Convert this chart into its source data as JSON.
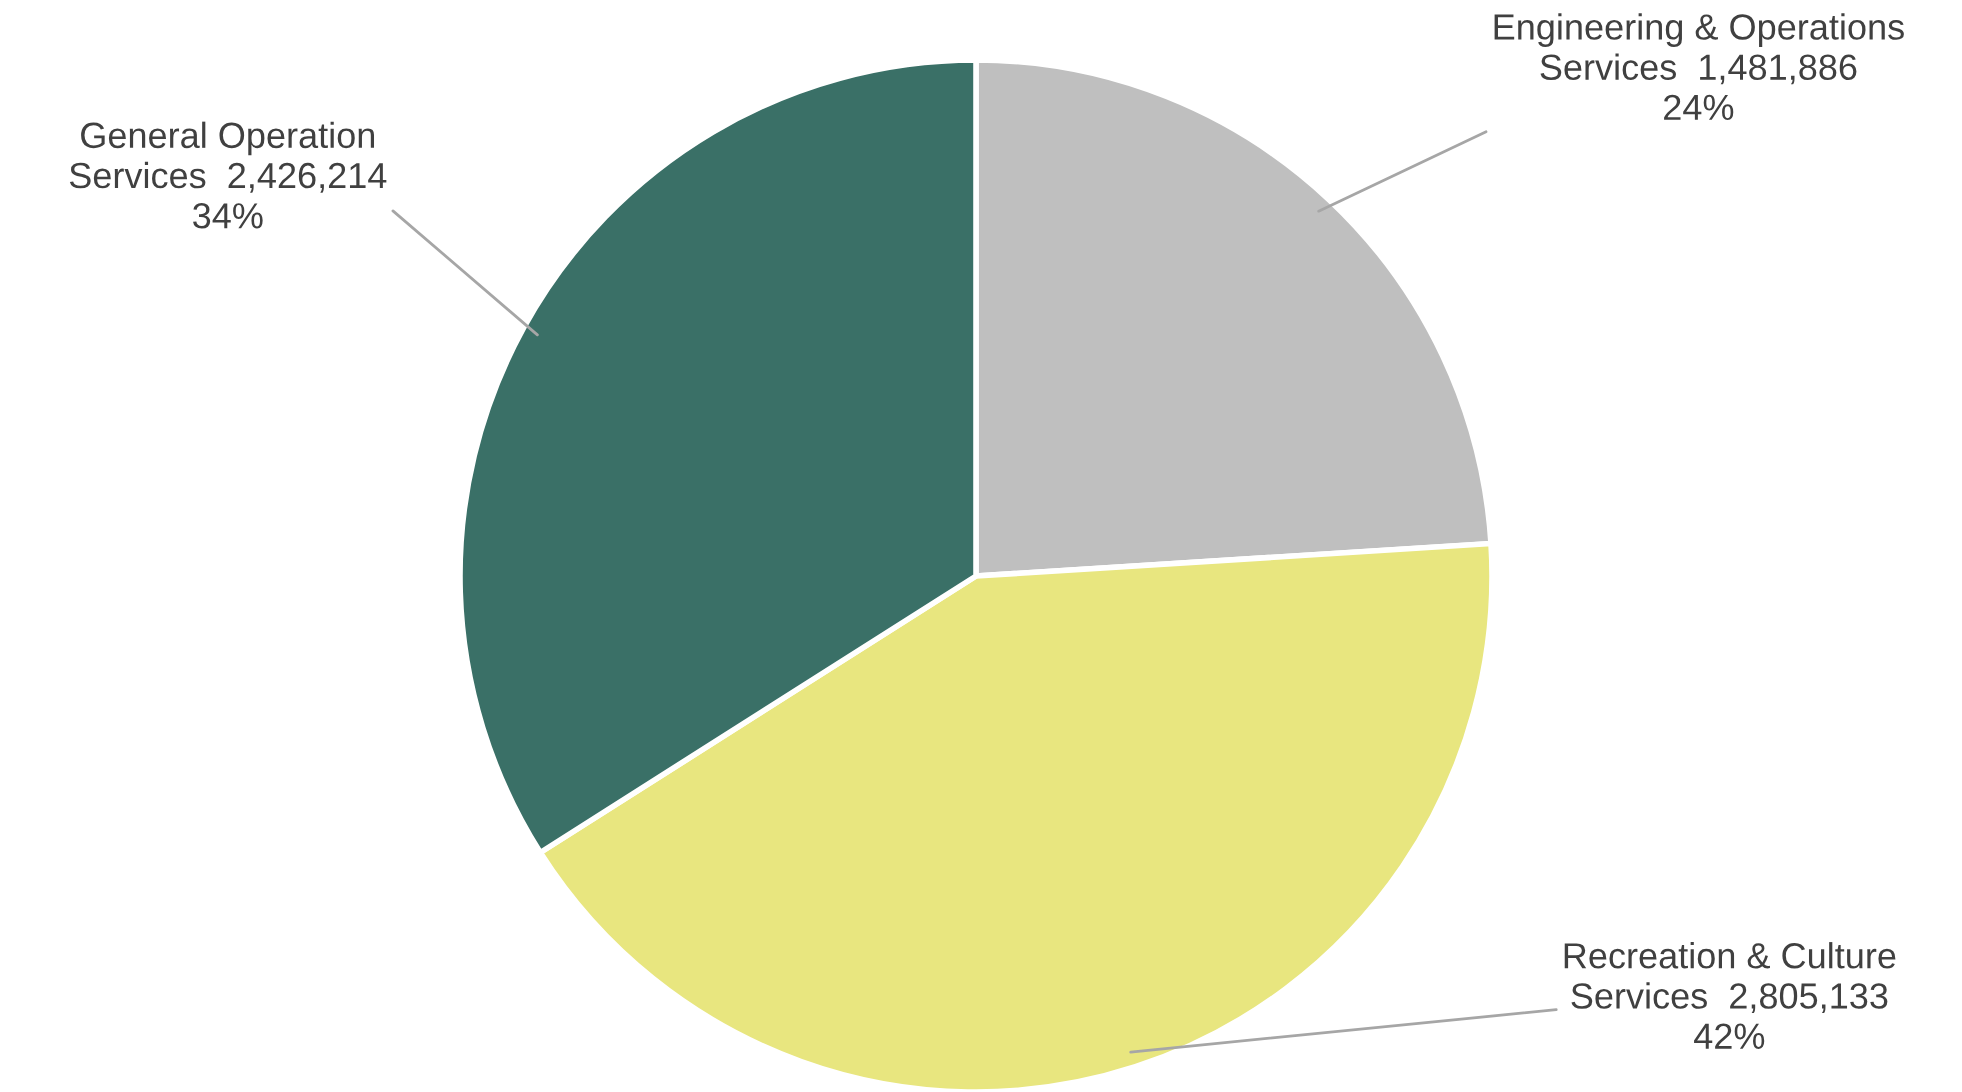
{
  "chart_data": {
    "type": "pie",
    "categories": [
      "Engineering & Operations\nServices  1,481,886",
      "Recreation & Culture\nServices  2,805,133",
      "General Operation\nServices  2,426,214"
    ],
    "values": [
      24,
      42,
      34
    ],
    "value_labels": [
      "24%",
      "42%",
      "34%"
    ],
    "colors": [
      "#bfbfbf",
      "#e8e67f",
      "#3a7067"
    ],
    "legend": false
  }
}
